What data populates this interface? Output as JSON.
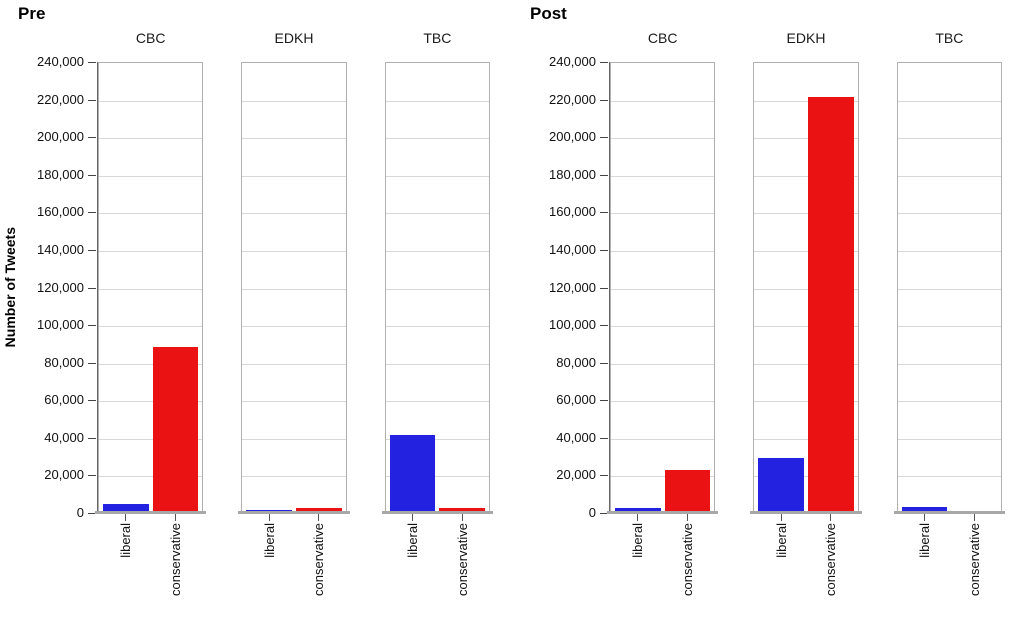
{
  "chart_data": {
    "type": "bar",
    "ylabel": "Number of Tweets",
    "ylim": [
      0,
      240000
    ],
    "ytick_step": 20000,
    "ytick_labels": [
      "0",
      "20,000",
      "40,000",
      "60,000",
      "80,000",
      "100,000",
      "120,000",
      "140,000",
      "160,000",
      "180,000",
      "200,000",
      "220,000",
      "240,000"
    ],
    "categories": [
      "liberal",
      "conservative"
    ],
    "bar_colors": {
      "liberal": "#2222e0",
      "conservative": "#ea1212"
    },
    "grid": true,
    "legend": "none",
    "groups": [
      {
        "title": "Pre",
        "show_y_axis_title": true,
        "panels": [
          {
            "label": "CBC",
            "values": {
              "liberal": 4000,
              "conservative": 88000
            }
          },
          {
            "label": "EDKH",
            "values": {
              "liberal": 1000,
              "conservative": 2000
            }
          },
          {
            "label": "TBC",
            "values": {
              "liberal": 41000,
              "conservative": 2000
            }
          }
        ]
      },
      {
        "title": "Post",
        "show_y_axis_title": false,
        "panels": [
          {
            "label": "CBC",
            "values": {
              "liberal": 2000,
              "conservative": 22500
            }
          },
          {
            "label": "EDKH",
            "values": {
              "liberal": 29000,
              "conservative": 221000
            }
          },
          {
            "label": "TBC",
            "values": {
              "liberal": 2500,
              "conservative": 400
            }
          }
        ]
      }
    ]
  }
}
